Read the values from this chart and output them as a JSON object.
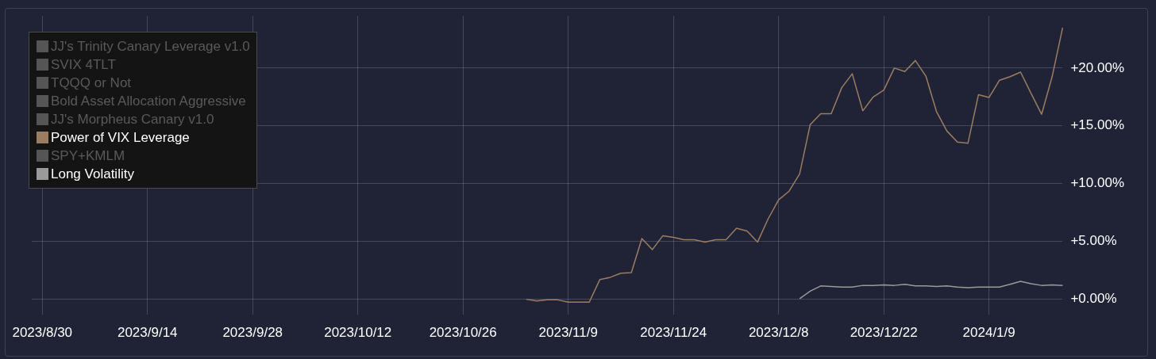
{
  "chart_data": {
    "type": "line",
    "categories": [
      null,
      "2023/8/30",
      null,
      null,
      null,
      null,
      null,
      null,
      null,
      null,
      null,
      "2023/9/14",
      null,
      null,
      null,
      null,
      null,
      null,
      null,
      null,
      null,
      "2023/9/28",
      null,
      null,
      null,
      null,
      null,
      null,
      null,
      null,
      null,
      "2023/10/12",
      null,
      null,
      null,
      null,
      null,
      null,
      null,
      null,
      null,
      "2023/10/26",
      null,
      null,
      null,
      null,
      null,
      null,
      null,
      null,
      null,
      "2023/11/9",
      null,
      null,
      null,
      null,
      null,
      null,
      null,
      null,
      null,
      "2023/11/24",
      null,
      null,
      null,
      null,
      null,
      null,
      null,
      null,
      null,
      "2023/12/8",
      null,
      null,
      null,
      null,
      null,
      null,
      null,
      null,
      null,
      "2023/12/22",
      null,
      null,
      null,
      null,
      null,
      null,
      null,
      null,
      null,
      "2024/1/9",
      null,
      null,
      null,
      null,
      null,
      null,
      null
    ],
    "series": [
      {
        "name": "JJ's Trinity Canary Leverage v1.0",
        "color": "#555555",
        "values": [
          null,
          null,
          null,
          null,
          null,
          null,
          null,
          null,
          null,
          null,
          null,
          null,
          null,
          null,
          null,
          null,
          null,
          null,
          null,
          null,
          null,
          null,
          null,
          null,
          null,
          null,
          null,
          null,
          null,
          null,
          null,
          null,
          null,
          null,
          null,
          null,
          null,
          null,
          null,
          null,
          null,
          null,
          null,
          null,
          null,
          null,
          null,
          null,
          null,
          null,
          null,
          null,
          null,
          null,
          null,
          null,
          null,
          null,
          null,
          null,
          null,
          null,
          null,
          null,
          null,
          null,
          null,
          null,
          null,
          null,
          null,
          null,
          null,
          null,
          null,
          null,
          null,
          null,
          null,
          null,
          null,
          null,
          null,
          null,
          null,
          null,
          null,
          null,
          null,
          null,
          null,
          null,
          null,
          null,
          null,
          null,
          null,
          null,
          null
        ]
      },
      {
        "name": "SVIX 4TLT",
        "color": "#555555",
        "values": [
          null,
          null,
          null,
          null,
          null,
          null,
          null,
          null,
          null,
          null,
          null,
          null,
          null,
          null,
          null,
          null,
          null,
          null,
          null,
          null,
          null,
          null,
          null,
          null,
          null,
          null,
          null,
          null,
          null,
          null,
          null,
          null,
          null,
          null,
          null,
          null,
          null,
          null,
          null,
          null,
          null,
          null,
          null,
          null,
          null,
          null,
          null,
          null,
          null,
          null,
          null,
          null,
          null,
          null,
          null,
          null,
          null,
          null,
          null,
          null,
          null,
          null,
          null,
          null,
          null,
          null,
          null,
          null,
          null,
          null,
          null,
          null,
          null,
          null,
          null,
          null,
          null,
          null,
          null,
          null,
          null,
          null,
          null,
          null,
          null,
          null,
          null,
          null,
          null,
          null,
          null,
          null,
          null,
          null,
          null,
          null,
          null,
          null,
          null
        ]
      },
      {
        "name": "TQQQ or Not",
        "color": "#555555",
        "values": [
          null,
          null,
          null,
          null,
          null,
          null,
          null,
          null,
          null,
          null,
          null,
          null,
          null,
          null,
          null,
          null,
          null,
          null,
          null,
          null,
          null,
          null,
          null,
          null,
          null,
          null,
          null,
          null,
          null,
          null,
          null,
          null,
          null,
          null,
          null,
          null,
          null,
          null,
          null,
          null,
          null,
          null,
          null,
          null,
          null,
          null,
          null,
          null,
          null,
          null,
          null,
          null,
          null,
          null,
          null,
          null,
          null,
          null,
          null,
          null,
          null,
          null,
          null,
          null,
          null,
          null,
          null,
          null,
          null,
          null,
          null,
          null,
          null,
          null,
          null,
          null,
          null,
          null,
          null,
          null,
          null,
          null,
          null,
          null,
          null,
          null,
          null,
          null,
          null,
          null,
          null,
          null,
          null,
          null,
          null,
          null,
          null,
          null,
          null
        ]
      },
      {
        "name": "Bold Asset Allocation Aggressive",
        "color": "#555555",
        "values": [
          null,
          null,
          null,
          null,
          null,
          null,
          null,
          null,
          null,
          null,
          null,
          null,
          null,
          null,
          null,
          null,
          null,
          null,
          null,
          null,
          null,
          null,
          null,
          null,
          null,
          null,
          null,
          null,
          null,
          null,
          null,
          null,
          null,
          null,
          null,
          null,
          null,
          null,
          null,
          null,
          null,
          null,
          null,
          null,
          null,
          null,
          null,
          null,
          null,
          null,
          null,
          null,
          null,
          null,
          null,
          null,
          null,
          null,
          null,
          null,
          null,
          null,
          null,
          null,
          null,
          null,
          null,
          null,
          null,
          null,
          null,
          null,
          null,
          null,
          null,
          null,
          null,
          null,
          null,
          null,
          null,
          null,
          null,
          null,
          null,
          null,
          null,
          null,
          null,
          null,
          null,
          null,
          null,
          null,
          null,
          null,
          null,
          null,
          null
        ]
      },
      {
        "name": "JJ's Morpheus Canary v1.0",
        "color": "#555555",
        "values": [
          null,
          null,
          null,
          null,
          null,
          null,
          null,
          null,
          null,
          null,
          null,
          null,
          null,
          null,
          null,
          null,
          null,
          null,
          null,
          null,
          null,
          null,
          null,
          null,
          null,
          null,
          null,
          null,
          null,
          null,
          null,
          null,
          null,
          null,
          null,
          null,
          null,
          null,
          null,
          null,
          null,
          null,
          null,
          null,
          null,
          null,
          null,
          null,
          null,
          null,
          null,
          null,
          null,
          null,
          null,
          null,
          null,
          null,
          null,
          null,
          null,
          null,
          null,
          null,
          null,
          null,
          null,
          null,
          null,
          null,
          null,
          null,
          null,
          null,
          null,
          null,
          null,
          null,
          null,
          null,
          null,
          null,
          null,
          null,
          null,
          null,
          null,
          null,
          null,
          null,
          null,
          null,
          null,
          null,
          null,
          null,
          null,
          null,
          null
        ]
      },
      {
        "name": "Power of VIX Leverage",
        "color": "#9c7d62",
        "values": [
          null,
          null,
          null,
          null,
          null,
          null,
          null,
          null,
          null,
          null,
          null,
          null,
          null,
          null,
          null,
          null,
          null,
          null,
          null,
          null,
          null,
          null,
          null,
          null,
          null,
          null,
          null,
          null,
          null,
          null,
          null,
          null,
          null,
          null,
          null,
          null,
          null,
          null,
          null,
          null,
          null,
          null,
          null,
          null,
          null,
          null,
          null,
          0.0,
          -0.15,
          -0.05,
          -0.05,
          -0.25,
          -0.25,
          -0.25,
          1.7,
          1.9,
          2.25,
          2.3,
          5.25,
          4.3,
          5.5,
          5.35,
          5.15,
          5.15,
          4.95,
          5.15,
          5.15,
          6.15,
          5.9,
          4.95,
          6.95,
          8.6,
          9.35,
          10.85,
          15.1,
          16.05,
          16.05,
          18.3,
          19.5,
          16.3,
          17.5,
          18.1,
          20.0,
          19.7,
          20.65,
          19.3,
          16.25,
          14.55,
          13.6,
          13.5,
          17.7,
          17.45,
          18.95,
          19.25,
          19.65,
          17.8,
          16.0,
          19.25,
          23.5
        ]
      },
      {
        "name": "SPY+KMLM",
        "color": "#555555",
        "values": [
          null,
          null,
          null,
          null,
          null,
          null,
          null,
          null,
          null,
          null,
          null,
          null,
          null,
          null,
          null,
          null,
          null,
          null,
          null,
          null,
          null,
          null,
          null,
          null,
          null,
          null,
          null,
          null,
          null,
          null,
          null,
          null,
          null,
          null,
          null,
          null,
          null,
          null,
          null,
          null,
          null,
          null,
          null,
          null,
          null,
          null,
          null,
          null,
          null,
          null,
          null,
          null,
          null,
          null,
          null,
          null,
          null,
          null,
          null,
          null,
          null,
          null,
          null,
          null,
          null,
          null,
          null,
          null,
          null,
          null,
          null,
          null,
          null,
          null,
          null,
          null,
          null,
          null,
          null,
          null,
          null,
          null,
          null,
          null,
          null,
          null,
          null,
          null,
          null,
          null,
          null,
          null,
          null,
          null,
          null,
          null,
          null,
          null,
          null
        ]
      },
      {
        "name": "Long Volatility",
        "color": "#9a9a9a",
        "values": [
          null,
          null,
          null,
          null,
          null,
          null,
          null,
          null,
          null,
          null,
          null,
          null,
          null,
          null,
          null,
          null,
          null,
          null,
          null,
          null,
          null,
          null,
          null,
          null,
          null,
          null,
          null,
          null,
          null,
          null,
          null,
          null,
          null,
          null,
          null,
          null,
          null,
          null,
          null,
          null,
          null,
          null,
          null,
          null,
          null,
          null,
          null,
          null,
          null,
          null,
          null,
          null,
          null,
          null,
          null,
          null,
          null,
          null,
          null,
          null,
          null,
          null,
          null,
          null,
          null,
          null,
          null,
          null,
          null,
          null,
          null,
          null,
          null,
          0.05,
          0.7,
          1.15,
          1.1,
          1.05,
          1.05,
          1.2,
          1.2,
          1.25,
          1.2,
          1.3,
          1.15,
          1.15,
          1.1,
          1.15,
          1.05,
          1.0,
          1.05,
          1.05,
          1.05,
          1.3,
          1.55,
          1.35,
          1.2,
          1.25,
          1.2
        ]
      }
    ],
    "ylim": [
      -1.3,
      24.5
    ],
    "yticks": [
      {
        "value": 0,
        "label": "+0.00%"
      },
      {
        "value": 5,
        "label": "+5.00%"
      },
      {
        "value": 10,
        "label": "+10.00%"
      },
      {
        "value": 15,
        "label": "+15.00%"
      },
      {
        "value": 20,
        "label": "+20.00%"
      }
    ],
    "grid": true,
    "legend": "top left",
    "marker": "none",
    "line_style": "solid"
  }
}
